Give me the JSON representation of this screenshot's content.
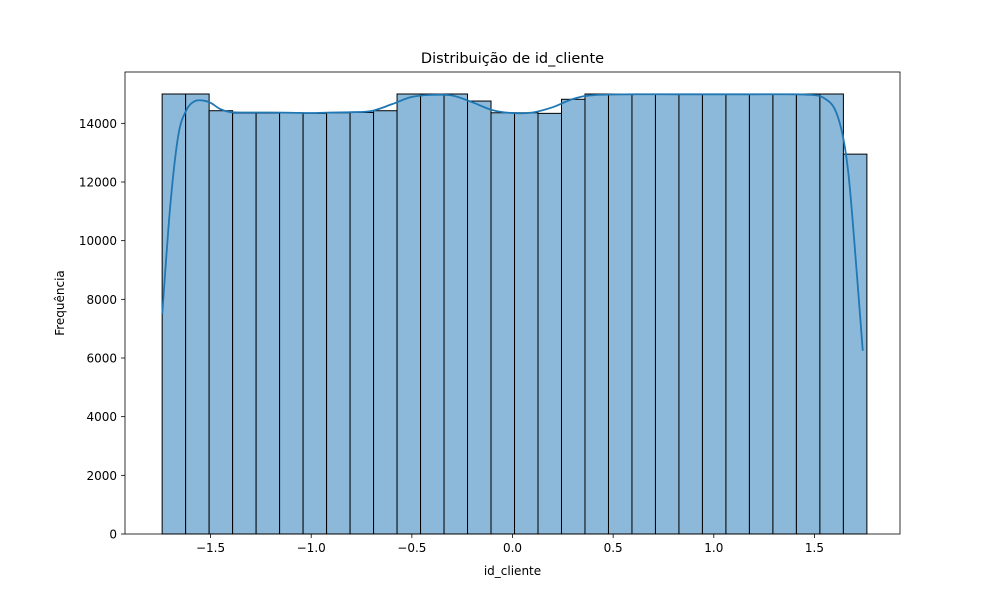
{
  "chart_data": {
    "type": "bar",
    "title": "Distribuição de id_cliente",
    "xlabel": "id_cliente",
    "ylabel": "Frequência",
    "xlim": [
      -1.925,
      1.925
    ],
    "ylim": [
      0,
      15750
    ],
    "x_ticks": [
      -1.5,
      -1.0,
      -0.5,
      0.0,
      0.5,
      1.0,
      1.5
    ],
    "x_tick_labels": [
      "−1.5",
      "−1.0",
      "−0.5",
      "0.0",
      "0.5",
      "1.0",
      "1.5"
    ],
    "y_ticks": [
      0,
      2000,
      4000,
      6000,
      8000,
      10000,
      12000,
      14000
    ],
    "y_tick_labels": [
      "0",
      "2000",
      "4000",
      "6000",
      "8000",
      "10000",
      "12000",
      "14000"
    ],
    "bin_start": -1.7405,
    "bin_width": 0.1167,
    "values": [
      15000,
      15000,
      14430,
      14350,
      14350,
      14360,
      14340,
      14360,
      14370,
      14430,
      15000,
      15000,
      15000,
      14760,
      14360,
      14360,
      14340,
      14820,
      15000,
      15000,
      15000,
      15000,
      15000,
      15000,
      15000,
      15000,
      15000,
      15000,
      15000,
      12950
    ],
    "kde": {
      "x": [
        -1.74,
        -1.7,
        -1.66,
        -1.62,
        -1.58,
        -1.54,
        -1.5,
        -1.45,
        -1.4,
        -1.3,
        -1.2,
        -1.1,
        -1.0,
        -0.9,
        -0.8,
        -0.7,
        -0.6,
        -0.5,
        -0.4,
        -0.3,
        -0.2,
        -0.1,
        0.0,
        0.1,
        0.2,
        0.3,
        0.4,
        0.6,
        0.8,
        1.0,
        1.2,
        1.4,
        1.5,
        1.55,
        1.6,
        1.64,
        1.67,
        1.7,
        1.74
      ],
      "y": [
        7500,
        11200,
        13600,
        14450,
        14750,
        14780,
        14700,
        14480,
        14380,
        14370,
        14370,
        14360,
        14350,
        14370,
        14380,
        14420,
        14650,
        14900,
        14970,
        14950,
        14720,
        14450,
        14350,
        14370,
        14550,
        14830,
        14960,
        14990,
        14990,
        14990,
        14990,
        14990,
        14960,
        14850,
        14500,
        13600,
        12200,
        9800,
        6250
      ]
    },
    "bar_fill": "#8cb9d9",
    "bar_edge": "#000000",
    "kde_color": "#1f77b4",
    "grid": false,
    "legend": "none"
  }
}
